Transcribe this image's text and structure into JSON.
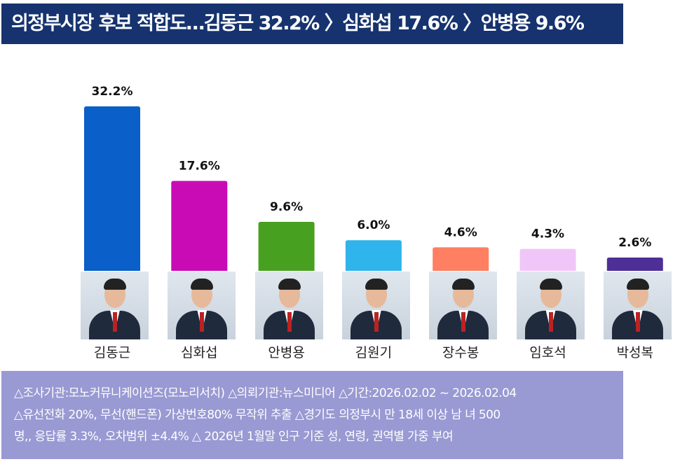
{
  "title": "의정부시장 후보 적합도…김동근 32.2% 〉심화섭 17.6% 〉안병용 9.6%",
  "chart_data": {
    "type": "bar",
    "categories": [
      "김동근",
      "심화섭",
      "안병용",
      "김원기",
      "장수봉",
      "임호석",
      "박성복"
    ],
    "values": [
      32.2,
      17.6,
      9.6,
      6.0,
      4.6,
      4.3,
      2.6
    ],
    "labels": [
      "32.2%",
      "17.6%",
      "9.6%",
      "6.0%",
      "4.6%",
      "4.3%",
      "2.6%"
    ],
    "colors": [
      "#0a5fc8",
      "#c90bb6",
      "#48a020",
      "#2fb4ec",
      "#ff7f62",
      "#f0c6f8",
      "#4e2f96"
    ],
    "ylim": [
      0,
      35
    ],
    "grid": false
  },
  "footer": {
    "lines": [
      "△조사기관:모노커뮤니케이션즈(모노리서치) △의뢰기관:뉴스미디어 △기간:2026.02.02 ~ 2026.02.04",
      "△유선전화 20%, 무선(핸드폰) 가상번호80% 무작위 추출 △경기도 의정부시 만 18세 이상 남 녀 500",
      "명,, 응답률 3.3%, 오차범위 ±4.4% △ 2026년 1월말 인구 기준 성, 연령, 권역별 가중 부여"
    ]
  }
}
